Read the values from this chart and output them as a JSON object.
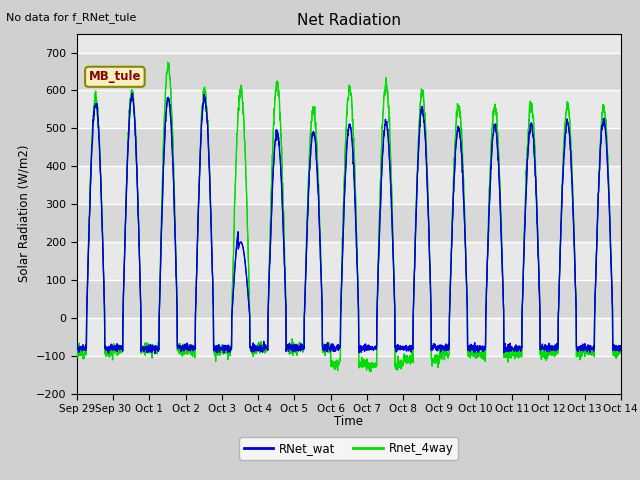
{
  "title": "Net Radiation",
  "no_data_text": "No data for f_RNet_tule",
  "ylabel": "Solar Radiation (W/m2)",
  "xlabel": "Time",
  "ylim": [
    -200,
    750
  ],
  "yticks": [
    -200,
    -100,
    0,
    100,
    200,
    300,
    400,
    500,
    600,
    700
  ],
  "line_blue": "#0000dd",
  "line_green": "#00dd00",
  "legend_labels": [
    "RNet_wat",
    "Rnet_4way"
  ],
  "mb_tule_label": "MB_tule",
  "xtick_labels": [
    "Sep 29",
    "Sep 30",
    "Oct 1",
    "Oct 2",
    "Oct 3",
    "Oct 4",
    "Oct 5",
    "Oct 6",
    "Oct 7",
    "Oct 8",
    "Oct 9",
    "Oct 10",
    "Oct 11",
    "Oct 12",
    "Oct 13",
    "Oct 14"
  ],
  "n_days": 16,
  "pts_per_day": 144,
  "green_peaks": [
    585,
    600,
    665,
    600,
    600,
    615,
    550,
    605,
    620,
    595,
    560,
    560,
    560,
    560,
    555,
    555
  ],
  "blue_peaks": [
    565,
    585,
    580,
    580,
    255,
    490,
    500,
    510,
    515,
    550,
    500,
    505,
    510,
    515,
    520,
    520
  ],
  "blue_night": -80,
  "green_night": -90
}
